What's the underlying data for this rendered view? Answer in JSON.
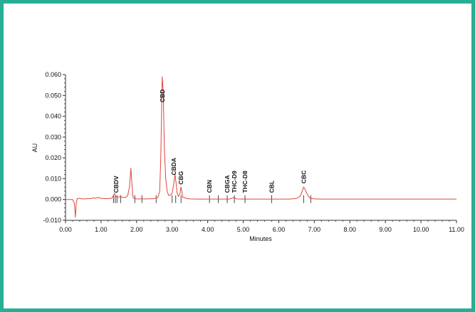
{
  "chart_data": {
    "type": "line",
    "title": "",
    "xlabel": "Minutes",
    "ylabel": "AU",
    "xlim": [
      0,
      11
    ],
    "ylim": [
      -0.01,
      0.06
    ],
    "x_ticks": [
      "0.00",
      "1.00",
      "2.00",
      "3.00",
      "4.00",
      "5.00",
      "6.00",
      "7.00",
      "8.00",
      "9.00",
      "10.00",
      "11.00"
    ],
    "y_ticks": [
      "-0.010",
      "0.000",
      "0.010",
      "0.020",
      "0.030",
      "0.040",
      "0.050",
      "0.060"
    ],
    "series": [
      {
        "color": "#e0453a",
        "x": [
          0.0,
          0.2,
          0.25,
          0.28,
          0.3,
          0.33,
          0.38,
          0.5,
          0.7,
          0.8,
          0.85,
          0.9,
          1.0,
          1.1,
          1.2,
          1.3,
          1.35,
          1.38,
          1.4,
          1.45,
          1.5,
          1.55,
          1.6,
          1.7,
          1.75,
          1.8,
          1.84,
          1.87,
          1.9,
          1.95,
          2.0,
          2.1,
          2.3,
          2.5,
          2.6,
          2.65,
          2.68,
          2.72,
          2.75,
          2.78,
          2.82,
          2.86,
          2.9,
          2.95,
          3.0,
          3.05,
          3.08,
          3.11,
          3.14,
          3.18,
          3.22,
          3.25,
          3.28,
          3.3,
          3.34,
          3.4,
          3.5,
          3.7,
          3.9,
          4.0,
          4.2,
          4.4,
          4.6,
          4.75,
          4.8,
          5.0,
          5.2,
          5.5,
          5.8,
          5.85,
          6.0,
          6.3,
          6.5,
          6.6,
          6.65,
          6.7,
          6.75,
          6.8,
          6.85,
          6.9,
          7.0,
          7.2,
          7.5,
          8.0,
          9.0,
          10.0,
          11.0
        ],
        "y": [
          0.0,
          0.0,
          -0.002,
          -0.0085,
          -0.002,
          0.0005,
          0.0005,
          0.0003,
          0.0004,
          0.0008,
          0.0005,
          0.001,
          0.0006,
          0.0004,
          0.0004,
          0.0006,
          0.002,
          0.003,
          0.0018,
          0.001,
          0.0012,
          0.0015,
          0.001,
          0.001,
          0.002,
          0.006,
          0.015,
          0.007,
          0.001,
          0.0004,
          0.0003,
          0.0003,
          0.0003,
          0.0004,
          0.001,
          0.004,
          0.02,
          0.059,
          0.052,
          0.025,
          0.01,
          0.004,
          0.002,
          0.002,
          0.003,
          0.008,
          0.012,
          0.008,
          0.003,
          0.0015,
          0.003,
          0.006,
          0.003,
          0.001,
          0.001,
          0.0005,
          0.0003,
          0.0002,
          0.0002,
          0.0002,
          0.0002,
          0.0002,
          0.0002,
          0.001,
          0.0003,
          0.0002,
          0.0002,
          0.0002,
          0.0002,
          0.0002,
          0.0002,
          0.0002,
          0.0005,
          0.0015,
          0.0035,
          0.006,
          0.0045,
          0.0025,
          0.0012,
          0.0005,
          0.0003,
          0.0002,
          0.0002,
          0.0002,
          0.0002,
          0.0002,
          0.0002
        ]
      }
    ],
    "markers_x": [
      1.35,
      1.4,
      1.45,
      1.55,
      1.95,
      2.15,
      2.55,
      3.0,
      3.1,
      3.25,
      4.05,
      4.3,
      4.55,
      4.75,
      5.05,
      5.8,
      6.7,
      6.9
    ],
    "peak_labels": [
      {
        "text": "CBDV",
        "x": 1.42,
        "y": 0.0025
      },
      {
        "text": "CBD",
        "x": 2.72,
        "y": 0.046
      },
      {
        "text": "CBDA",
        "x": 3.05,
        "y": 0.011
      },
      {
        "text": "CBG",
        "x": 3.25,
        "y": 0.0065
      },
      {
        "text": "CBN",
        "x": 4.05,
        "y": 0.0025
      },
      {
        "text": "CBGA",
        "x": 4.55,
        "y": 0.0025
      },
      {
        "text": "THC-D9",
        "x": 4.75,
        "y": 0.0025
      },
      {
        "text": "THC-D8",
        "x": 5.05,
        "y": 0.0025
      },
      {
        "text": "CBL",
        "x": 5.8,
        "y": 0.0025
      },
      {
        "text": "CBC",
        "x": 6.7,
        "y": 0.007
      }
    ]
  }
}
